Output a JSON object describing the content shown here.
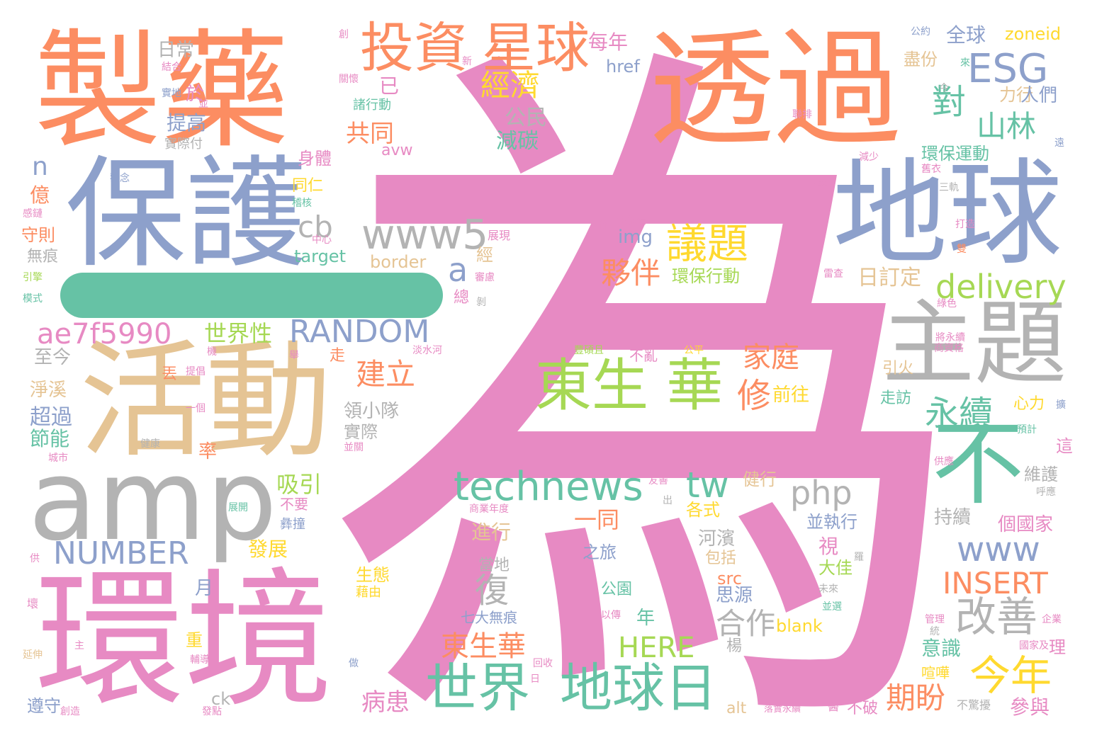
{
  "palette": {
    "orange": "#fc8d62",
    "blue": "#8da0cb",
    "pink": "#e78ac3",
    "green": "#66c2a5",
    "lime": "#a6d854",
    "yellow": "#ffd92f",
    "tan": "#e5c494",
    "gray": "#b3b3b3"
  },
  "words": [
    {
      "text": "為",
      "color": "#e78ac3"
    },
    {
      "text": "製藥",
      "color": "#fc8d62"
    },
    {
      "text": "透過",
      "color": "#fc8d62"
    },
    {
      "text": "保護",
      "color": "#8da0cb"
    },
    {
      "text": "地球",
      "color": "#8da0cb"
    },
    {
      "text": "活動",
      "color": "#e5c494"
    },
    {
      "text": "amp",
      "color": "#b3b3b3"
    },
    {
      "text": "環境",
      "color": "#e78ac3"
    },
    {
      "text": "主題",
      "color": "#b3b3b3"
    },
    {
      "text": "不",
      "color": "#66c2a5"
    },
    {
      "text": "投資",
      "color": "#fc8d62"
    },
    {
      "text": "星球",
      "color": "#fc8d62"
    },
    {
      "text": "ESG",
      "color": "#8da0cb"
    },
    {
      "text": "www5",
      "color": "#b3b3b3"
    },
    {
      "text": "東生 華",
      "color": "#a6d854"
    },
    {
      "text": "technews",
      "color": "#66c2a5"
    },
    {
      "text": "世界",
      "color": "#66c2a5"
    },
    {
      "text": "地球日",
      "color": "#66c2a5"
    },
    {
      "text": "RANDOM",
      "color": "#8da0cb"
    },
    {
      "text": "NUMBER",
      "color": "#8da0cb"
    },
    {
      "text": "ae7f5990",
      "color": "#e78ac3"
    },
    {
      "text": "delivery",
      "color": "#a6d854"
    },
    {
      "text": "議題",
      "color": "#ffd92f"
    },
    {
      "text": "永續",
      "color": "#66c2a5"
    },
    {
      "text": "改善",
      "color": "#b3b3b3"
    },
    {
      "text": "今年",
      "color": "#ffd92f"
    },
    {
      "text": "INSERT",
      "color": "#fc8d62"
    },
    {
      "text": "www",
      "color": "#8da0cb"
    },
    {
      "text": "tw",
      "color": "#66c2a5"
    },
    {
      "text": "php",
      "color": "#b3b3b3"
    },
    {
      "text": "經濟",
      "color": "#ffd92f"
    },
    {
      "text": "對",
      "color": "#66c2a5"
    },
    {
      "text": "山林",
      "color": "#66c2a5"
    },
    {
      "text": "夥伴",
      "color": "#fc8d62"
    },
    {
      "text": "HERE",
      "color": "#a6d854"
    },
    {
      "text": "建立",
      "color": "#fc8d62"
    },
    {
      "text": "家庭",
      "color": "#fc8d62"
    },
    {
      "text": "修",
      "color": "#fc8d62"
    },
    {
      "text": "東生華",
      "color": "#fc8d62"
    },
    {
      "text": "合作",
      "color": "#b3b3b3"
    },
    {
      "text": "復",
      "color": "#b3b3b3"
    },
    {
      "text": "期盼",
      "color": "#fc8d62"
    },
    {
      "text": "病患",
      "color": "#e78ac3"
    },
    {
      "text": "世界性",
      "color": "#a6d854"
    },
    {
      "text": "共同",
      "color": "#fc8d62"
    },
    {
      "text": "公民",
      "color": "#b3b3b3"
    },
    {
      "text": "減碳",
      "color": "#66c2a5"
    },
    {
      "text": "每年",
      "color": "#e78ac3"
    },
    {
      "text": "全球",
      "color": "#8da0cb"
    },
    {
      "text": "zoneid",
      "color": "#ffd92f"
    },
    {
      "text": "href",
      "color": "#8da0cb"
    },
    {
      "text": "日常",
      "color": "#b3b3b3"
    },
    {
      "text": "提高",
      "color": "#8da0cb"
    },
    {
      "text": "於",
      "color": "#e78ac3"
    },
    {
      "text": "已",
      "color": "#e78ac3"
    },
    {
      "text": "cb",
      "color": "#b3b3b3"
    },
    {
      "text": "a",
      "color": "#8da0cb"
    },
    {
      "text": "n",
      "color": "#8da0cb"
    },
    {
      "text": "億",
      "color": "#fc8d62"
    },
    {
      "text": "守則",
      "color": "#fc8d62"
    },
    {
      "text": "無痕",
      "color": "#b3b3b3"
    },
    {
      "text": "身體",
      "color": "#e78ac3"
    },
    {
      "text": "同仁",
      "color": "#ffd92f"
    },
    {
      "text": "img",
      "color": "#8da0cb"
    },
    {
      "text": "target",
      "color": "#66c2a5"
    },
    {
      "text": "border",
      "color": "#e5c494"
    },
    {
      "text": "環保行動",
      "color": "#a6d854"
    },
    {
      "text": "日訂定",
      "color": "#e5c494"
    },
    {
      "text": "環保運動",
      "color": "#66c2a5"
    },
    {
      "text": "盡份",
      "color": "#e5c494"
    },
    {
      "text": "力行",
      "color": "#e5c494"
    },
    {
      "text": "人們",
      "color": "#8da0cb"
    },
    {
      "text": "至今",
      "color": "#b3b3b3"
    },
    {
      "text": "淨溪",
      "color": "#e5c494"
    },
    {
      "text": "超過",
      "color": "#8da0cb"
    },
    {
      "text": "節能",
      "color": "#66c2a5"
    },
    {
      "text": "率",
      "color": "#fc8d62"
    },
    {
      "text": "吸引",
      "color": "#a6d854"
    },
    {
      "text": "不要",
      "color": "#e78ac3"
    },
    {
      "text": "一同",
      "color": "#fc8d62"
    },
    {
      "text": "進行",
      "color": "#e5c494"
    },
    {
      "text": "發展",
      "color": "#ffd92f"
    },
    {
      "text": "當地",
      "color": "#b3b3b3"
    },
    {
      "text": "前往",
      "color": "#ffd92f"
    },
    {
      "text": "領小隊",
      "color": "#b3b3b3"
    },
    {
      "text": "實際",
      "color": "#b3b3b3"
    },
    {
      "text": "各式",
      "color": "#ffd92f"
    },
    {
      "text": "健行",
      "color": "#e5c494"
    },
    {
      "text": "河濱",
      "color": "#b3b3b3"
    },
    {
      "text": "包括",
      "color": "#e5c494"
    },
    {
      "text": "並執行",
      "color": "#8da0cb"
    },
    {
      "text": "持續",
      "color": "#b3b3b3"
    },
    {
      "text": "個國家",
      "color": "#e78ac3"
    },
    {
      "text": "維護",
      "color": "#b3b3b3"
    },
    {
      "text": "視",
      "color": "#e78ac3"
    },
    {
      "text": "大佳",
      "color": "#a6d854"
    },
    {
      "text": "生態",
      "color": "#ffd92f"
    },
    {
      "text": "src",
      "color": "#fc8d62"
    },
    {
      "text": "思源",
      "color": "#8da0cb"
    },
    {
      "text": "公園",
      "color": "#66c2a5"
    },
    {
      "text": "之旅",
      "color": "#8da0cb"
    },
    {
      "text": "月",
      "color": "#8da0cb"
    },
    {
      "text": "重",
      "color": "#ffd92f"
    },
    {
      "text": "年",
      "color": "#66c2a5"
    },
    {
      "text": "blank",
      "color": "#ffd92f"
    },
    {
      "text": "楊",
      "color": "#b3b3b3"
    },
    {
      "text": "意識",
      "color": "#66c2a5"
    },
    {
      "text": "參與",
      "color": "#e78ac3"
    },
    {
      "text": "不破",
      "color": "#e78ac3"
    },
    {
      "text": "alt",
      "color": "#e5c494"
    },
    {
      "text": "ck",
      "color": "#b3b3b3"
    },
    {
      "text": "遵守",
      "color": "#8da0cb"
    },
    {
      "text": "走",
      "color": "#fc8d62"
    },
    {
      "text": "丟",
      "color": "#fc8d62"
    },
    {
      "text": "引火",
      "color": "#e5c494"
    },
    {
      "text": "走訪",
      "color": "#66c2a5"
    },
    {
      "text": "心力",
      "color": "#ffd92f"
    },
    {
      "text": "這",
      "color": "#e78ac3"
    },
    {
      "text": "理",
      "color": "#e78ac3"
    },
    {
      "text": "不亂",
      "color": "#e78ac3"
    },
    {
      "text": "avw",
      "color": "#e78ac3"
    },
    {
      "text": "譲",
      "color": "#e78ac3"
    },
    {
      "text": "經",
      "color": "#e5c494"
    },
    {
      "text": "總",
      "color": "#e78ac3"
    },
    {
      "text": "七大無痕",
      "color": "#8da0cb"
    },
    {
      "text": "諸行動",
      "color": "#66c2a5"
    },
    {
      "text": "實際付",
      "color": "#b3b3b3"
    },
    {
      "text": "觀念",
      "color": "#8da0cb"
    },
    {
      "text": "展現",
      "color": "#e78ac3"
    },
    {
      "text": "中心",
      "color": "#e78ac3"
    },
    {
      "text": "審慮",
      "color": "#e78ac3"
    },
    {
      "text": "注永續",
      "color": "#e78ac3"
    },
    {
      "text": "從",
      "color": "#e78ac3"
    },
    {
      "text": "減少",
      "color": "#e78ac3"
    },
    {
      "text": "舊衣",
      "color": "#e78ac3"
    },
    {
      "text": "三軌",
      "color": "#b3b3b3"
    },
    {
      "text": "打造",
      "color": "#e78ac3"
    },
    {
      "text": "雙",
      "color": "#fc8d62"
    },
    {
      "text": "雷查",
      "color": "#e78ac3"
    },
    {
      "text": "綠色",
      "color": "#e78ac3"
    },
    {
      "text": "將永續",
      "color": "#e78ac3"
    },
    {
      "text": "商資格",
      "color": "#e78ac3"
    },
    {
      "text": "預計",
      "color": "#66c2a5"
    },
    {
      "text": "供應",
      "color": "#e78ac3"
    },
    {
      "text": "呼應",
      "color": "#b3b3b3"
    },
    {
      "text": "管理",
      "color": "#e78ac3"
    },
    {
      "text": "企業",
      "color": "#e78ac3"
    },
    {
      "text": "國家及",
      "color": "#e78ac3"
    },
    {
      "text": "喧嘩",
      "color": "#ffd92f"
    },
    {
      "text": "不驚擾",
      "color": "#b3b3b3"
    },
    {
      "text": "落實永續",
      "color": "#e78ac3"
    },
    {
      "text": "醫",
      "color": "#e78ac3"
    },
    {
      "text": "並選",
      "color": "#66c2a5"
    },
    {
      "text": "未來",
      "color": "#b3b3b3"
    },
    {
      "text": "商業年度",
      "color": "#e78ac3"
    },
    {
      "text": "友善",
      "color": "#e78ac3"
    },
    {
      "text": "出",
      "color": "#b3b3b3"
    },
    {
      "text": "以傳",
      "color": "#e78ac3"
    },
    {
      "text": "回收",
      "color": "#e78ac3"
    },
    {
      "text": "主",
      "color": "#e78ac3"
    },
    {
      "text": "輔導",
      "color": "#e78ac3"
    },
    {
      "text": "延伸",
      "color": "#e5c494"
    },
    {
      "text": "壞",
      "color": "#e78ac3"
    },
    {
      "text": "供",
      "color": "#e78ac3"
    },
    {
      "text": "創造",
      "color": "#e78ac3"
    },
    {
      "text": "發點",
      "color": "#e78ac3"
    },
    {
      "text": "做",
      "color": "#8da0cb"
    },
    {
      "text": "健康",
      "color": "#b3b3b3"
    },
    {
      "text": "城市",
      "color": "#e78ac3"
    },
    {
      "text": "一個",
      "color": "#e78ac3"
    },
    {
      "text": "並關",
      "color": "#e78ac3"
    },
    {
      "text": "展開",
      "color": "#66c2a5"
    },
    {
      "text": "彝撞",
      "color": "#8da0cb"
    },
    {
      "text": "淡水河",
      "color": "#e78ac3"
    },
    {
      "text": "豐碩且",
      "color": "#a6d854"
    },
    {
      "text": "公平",
      "color": "#ffd92f"
    },
    {
      "text": "機",
      "color": "#e78ac3"
    },
    {
      "text": "提倡",
      "color": "#e78ac3"
    },
    {
      "text": "舉",
      "color": "#e78ac3"
    },
    {
      "text": "結合",
      "color": "#e78ac3"
    },
    {
      "text": "實地",
      "color": "#8da0cb"
    },
    {
      "text": "並",
      "color": "#e78ac3"
    },
    {
      "text": "創",
      "color": "#e78ac3"
    },
    {
      "text": "新",
      "color": "#e78ac3"
    },
    {
      "text": "關懷",
      "color": "#e78ac3"
    },
    {
      "text": "公約",
      "color": "#8da0cb"
    },
    {
      "text": "來",
      "color": "#66c2a5"
    },
    {
      "text": "今",
      "color": "#b3b3b3"
    },
    {
      "text": "聯排",
      "color": "#e78ac3"
    },
    {
      "text": "遠",
      "color": "#8da0cb"
    },
    {
      "text": "稽核",
      "color": "#66c2a5"
    },
    {
      "text": "感鏈",
      "color": "#e78ac3"
    },
    {
      "text": "引擎",
      "color": "#a6d854"
    },
    {
      "text": "模式",
      "color": "#66c2a5"
    },
    {
      "text": "剝",
      "color": "#b3b3b3"
    },
    {
      "text": "藉由",
      "color": "#ffd92f"
    },
    {
      "text": "日",
      "color": "#e78ac3"
    },
    {
      "text": "羅",
      "color": "#b3b3b3"
    },
    {
      "text": "統",
      "color": "#b3b3b3"
    },
    {
      "text": "擴",
      "color": "#8da0cb"
    }
  ]
}
